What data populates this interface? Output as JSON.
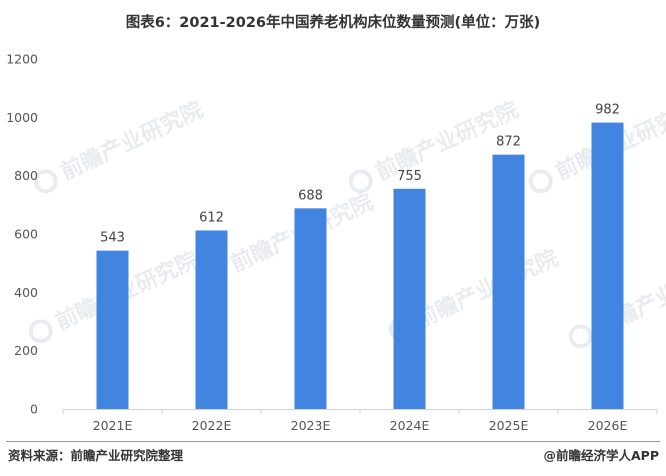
{
  "chart_data": {
    "type": "bar",
    "title": "图表6：2021-2026年中国养老机构床位数量预测(单位：万张)",
    "categories": [
      "2021E",
      "2022E",
      "2023E",
      "2024E",
      "2025E",
      "2026E"
    ],
    "values": [
      543,
      612,
      688,
      755,
      872,
      982
    ],
    "y_ticks": [
      "0",
      "200",
      "400",
      "600",
      "800",
      "1000",
      "1200"
    ],
    "ylim": [
      0,
      1200
    ],
    "grid": false,
    "legend": "none",
    "bar_color": "#4185e0"
  },
  "footer": {
    "source": "资料来源：前瞻产业研究院整理",
    "credit": "@前瞻经济学人APP"
  },
  "watermark": {
    "text": "前瞻产业研究院",
    "icon": "qianzhan-logo-icon"
  }
}
